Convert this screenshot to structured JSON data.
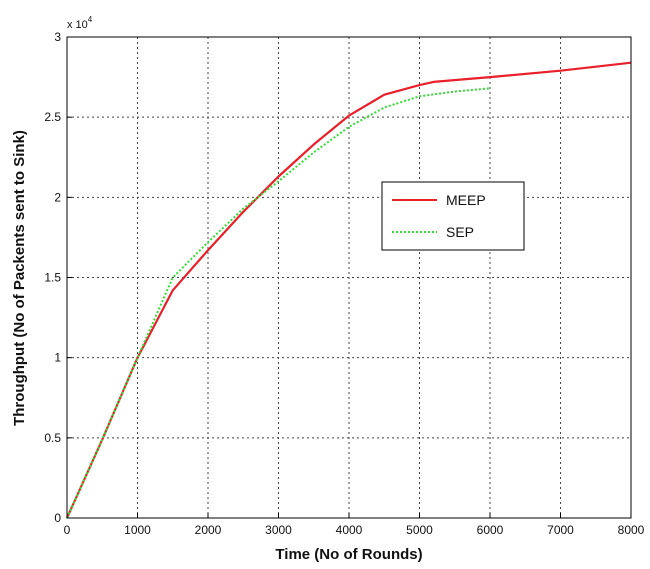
{
  "chart_data": {
    "type": "line",
    "xlabel": "Time (No of Rounds)",
    "ylabel": "Throughput (No of Packents sent to Sink)",
    "y_multiplier_base": "x 10",
    "y_multiplier_exp": "4",
    "xlim": [
      0,
      8000
    ],
    "ylim": [
      0,
      3
    ],
    "xticks": [
      "0",
      "1000",
      "2000",
      "3000",
      "4000",
      "5000",
      "6000",
      "7000",
      "8000"
    ],
    "yticks": [
      "0",
      "0.5",
      "1",
      "1.5",
      "2",
      "2.5",
      "3"
    ],
    "grid": true,
    "legend_position": "center-right",
    "series": [
      {
        "name": "MEEP",
        "color": "#e8202a",
        "style": "solid",
        "x": [
          0,
          500,
          1000,
          1500,
          2000,
          2500,
          3000,
          3500,
          4000,
          4500,
          5000,
          5200,
          6000,
          7000,
          8000
        ],
        "y": [
          0,
          0.49,
          1.0,
          1.42,
          1.67,
          1.91,
          2.13,
          2.33,
          2.51,
          2.64,
          2.7,
          2.72,
          2.75,
          2.79,
          2.84
        ]
      },
      {
        "name": "SEP",
        "color": "#33dd33",
        "style": "dotted",
        "x": [
          0,
          500,
          1000,
          1500,
          2000,
          2500,
          3000,
          3500,
          4000,
          4500,
          5000,
          5500,
          6000
        ],
        "y": [
          0,
          0.49,
          1.0,
          1.5,
          1.72,
          1.93,
          2.1,
          2.28,
          2.44,
          2.56,
          2.63,
          2.66,
          2.68
        ]
      }
    ]
  }
}
